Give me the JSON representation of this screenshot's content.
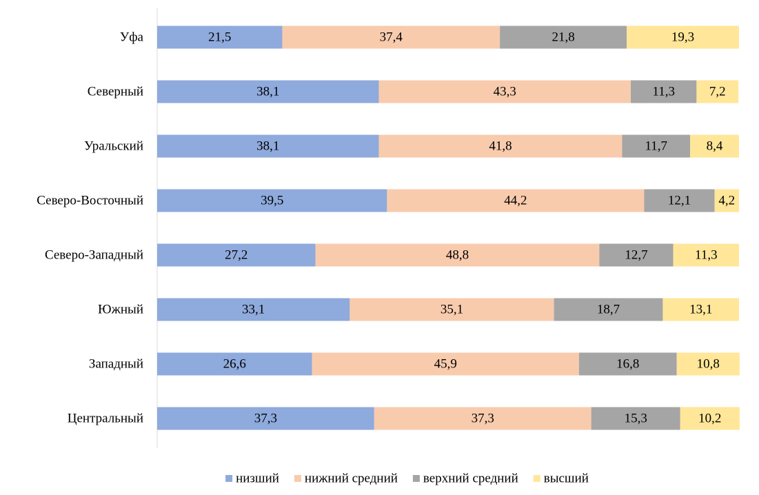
{
  "chart_data": {
    "type": "bar",
    "orientation": "horizontal",
    "stacked": true,
    "title": "",
    "xlabel": "",
    "ylabel": "",
    "xlim": [
      0,
      100
    ],
    "grid": false,
    "legend_position": "bottom",
    "categories": [
      "Уфа",
      "Северный",
      "Уральский",
      "Северо-Восточный",
      "Северо-Западный",
      "Южный",
      "Западный",
      "Центральный"
    ],
    "series": [
      {
        "name": "низший",
        "color": "#8faadc",
        "values": [
          21.5,
          38.1,
          38.1,
          39.5,
          27.2,
          33.1,
          26.6,
          37.3
        ]
      },
      {
        "name": "нижний средний",
        "color": "#f8cbad",
        "values": [
          37.4,
          43.3,
          41.8,
          44.2,
          48.8,
          35.1,
          45.9,
          37.3
        ]
      },
      {
        "name": "верхний средний",
        "color": "#a5a5a5",
        "values": [
          21.8,
          11.3,
          11.7,
          12.1,
          12.7,
          18.7,
          16.8,
          15.3
        ]
      },
      {
        "name": "высший",
        "color": "#ffe699",
        "values": [
          19.3,
          7.2,
          8.4,
          4.2,
          11.3,
          13.1,
          10.8,
          10.2
        ]
      }
    ],
    "data_labels": [
      [
        "21,5",
        "38,1",
        "38,1",
        "39,5",
        "27,2",
        "33,1",
        "26,6",
        "37,3"
      ],
      [
        "37,4",
        "43,3",
        "41,8",
        "44,2",
        "48,8",
        "35,1",
        "45,9",
        "37,3"
      ],
      [
        "21,8",
        "11,3",
        "11,7",
        "12,1",
        "12,7",
        "18,7",
        "16,8",
        "15,3"
      ],
      [
        "19,3",
        "7,2",
        "8,4",
        "4,2",
        "11,3",
        "13,1",
        "10,8",
        "10,2"
      ]
    ]
  }
}
